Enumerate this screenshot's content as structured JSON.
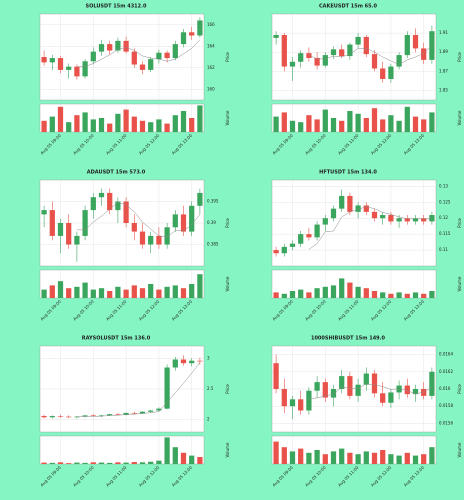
{
  "chart_data": [
    {
      "type": "candlestick",
      "title": "SOLUSDT 15m 4312.0",
      "ylabel": "Price",
      "vlabel": "Volume",
      "ylim": [
        159,
        167
      ],
      "yticks": [
        160,
        162,
        164,
        166
      ],
      "vlim": [
        0,
        100
      ],
      "xticks": [
        {
          "value": 2,
          "label": "Aug 05 09:00"
        },
        {
          "value": 6,
          "label": "Aug 05 10:00"
        },
        {
          "value": 10,
          "label": "Aug 05 11:00"
        },
        {
          "value": 14,
          "label": "Aug 05 12:00"
        },
        {
          "value": 18,
          "label": "Aug 05 13:00"
        }
      ],
      "up_color": "#3aa55d",
      "down_color": "#e8524a",
      "ma_color": "#8a8a8a",
      "grid": true,
      "ohlc": [
        [
          163.0,
          163.6,
          162.2,
          162.5
        ],
        [
          162.5,
          163.2,
          161.8,
          162.9
        ],
        [
          162.9,
          163.1,
          161.5,
          161.8
        ],
        [
          161.8,
          162.4,
          161.0,
          162.1
        ],
        [
          162.1,
          162.3,
          160.9,
          161.2
        ],
        [
          161.2,
          162.8,
          161.0,
          162.6
        ],
        [
          162.6,
          163.9,
          162.3,
          163.5
        ],
        [
          163.5,
          164.6,
          163.1,
          164.2
        ],
        [
          164.2,
          164.5,
          163.2,
          163.6
        ],
        [
          163.6,
          164.8,
          163.4,
          164.5
        ],
        [
          164.5,
          164.9,
          163.3,
          163.5
        ],
        [
          163.5,
          163.8,
          162.0,
          162.3
        ],
        [
          162.3,
          162.6,
          161.4,
          161.8
        ],
        [
          161.8,
          163.0,
          161.6,
          162.8
        ],
        [
          162.8,
          163.7,
          162.4,
          163.4
        ],
        [
          163.4,
          163.6,
          162.5,
          162.9
        ],
        [
          162.9,
          164.5,
          162.7,
          164.2
        ],
        [
          164.2,
          165.6,
          163.9,
          165.3
        ],
        [
          165.3,
          165.8,
          164.6,
          165.0
        ],
        [
          165.0,
          166.7,
          164.8,
          166.4
        ]
      ],
      "volume": [
        40,
        55,
        90,
        35,
        60,
        70,
        45,
        50,
        30,
        65,
        80,
        55,
        40,
        35,
        45,
        30,
        60,
        75,
        50,
        95
      ],
      "ma": [
        null,
        null,
        null,
        null,
        162.1,
        162.1,
        162.4,
        162.8,
        163.2,
        163.7,
        163.9,
        163.6,
        163.1,
        162.9,
        162.8,
        162.6,
        162.8,
        163.3,
        163.8,
        164.6
      ]
    },
    {
      "type": "candlestick",
      "title": "CAKEUSDT 15m 65.0",
      "ylabel": "Price",
      "vlabel": "Volume",
      "ylim": [
        1.84,
        1.93
      ],
      "yticks": [
        1.85,
        1.87,
        1.89,
        1.91
      ],
      "vlim": [
        0,
        100
      ],
      "xticks": [
        {
          "value": 2,
          "label": "Aug 05 09:00"
        },
        {
          "value": 6,
          "label": "Aug 05 10:00"
        },
        {
          "value": 10,
          "label": "Aug 05 11:00"
        },
        {
          "value": 14,
          "label": "Aug 05 12:00"
        },
        {
          "value": 18,
          "label": "Aug 05 13:00"
        }
      ],
      "up_color": "#3aa55d",
      "down_color": "#e8524a",
      "ma_color": "#8a8a8a",
      "grid": true,
      "ohlc": [
        [
          1.905,
          1.912,
          1.898,
          1.908
        ],
        [
          1.908,
          1.91,
          1.87,
          1.875
        ],
        [
          1.875,
          1.885,
          1.86,
          1.88
        ],
        [
          1.88,
          1.892,
          1.874,
          1.889
        ],
        [
          1.889,
          1.895,
          1.88,
          1.884
        ],
        [
          1.884,
          1.89,
          1.872,
          1.876
        ],
        [
          1.876,
          1.89,
          1.874,
          1.887
        ],
        [
          1.887,
          1.896,
          1.883,
          1.893
        ],
        [
          1.893,
          1.898,
          1.884,
          1.886
        ],
        [
          1.886,
          1.9,
          1.882,
          1.898
        ],
        [
          1.898,
          1.91,
          1.894,
          1.906
        ],
        [
          1.906,
          1.908,
          1.885,
          1.888
        ],
        [
          1.888,
          1.892,
          1.87,
          1.873
        ],
        [
          1.873,
          1.88,
          1.858,
          1.862
        ],
        [
          1.862,
          1.878,
          1.858,
          1.875
        ],
        [
          1.875,
          1.89,
          1.872,
          1.887
        ],
        [
          1.887,
          1.912,
          1.884,
          1.908
        ],
        [
          1.908,
          1.915,
          1.89,
          1.894
        ],
        [
          1.894,
          1.9,
          1.878,
          1.882
        ],
        [
          1.882,
          1.918,
          1.878,
          1.912
        ]
      ],
      "volume": [
        55,
        70,
        40,
        35,
        60,
        45,
        80,
        50,
        40,
        75,
        65,
        50,
        85,
        45,
        60,
        40,
        90,
        55,
        45,
        70
      ],
      "ma": [
        null,
        null,
        null,
        null,
        1.887,
        1.883,
        1.883,
        1.886,
        1.885,
        1.888,
        1.894,
        1.894,
        1.89,
        1.885,
        1.881,
        1.877,
        1.882,
        1.885,
        1.889,
        1.897
      ]
    },
    {
      "type": "candlestick",
      "title": "ADAUSDT 15m 573.0",
      "ylabel": "Price",
      "vlabel": "Volume",
      "ylim": [
        0.38,
        0.4
      ],
      "yticks": [
        0.385,
        0.39,
        0.395
      ],
      "vlim": [
        0,
        100
      ],
      "xticks": [
        {
          "value": 2,
          "label": "Aug 05 09:00"
        },
        {
          "value": 6,
          "label": "Aug 05 10:00"
        },
        {
          "value": 10,
          "label": "Aug 05 11:00"
        },
        {
          "value": 14,
          "label": "Aug 05 12:00"
        },
        {
          "value": 18,
          "label": "Aug 05 13:00"
        }
      ],
      "up_color": "#3aa55d",
      "down_color": "#e8524a",
      "ma_color": "#8a8a8a",
      "grid": true,
      "ohlc": [
        [
          0.392,
          0.394,
          0.389,
          0.393
        ],
        [
          0.393,
          0.395,
          0.386,
          0.387
        ],
        [
          0.387,
          0.391,
          0.383,
          0.39
        ],
        [
          0.39,
          0.392,
          0.384,
          0.385
        ],
        [
          0.385,
          0.388,
          0.381,
          0.387
        ],
        [
          0.387,
          0.394,
          0.386,
          0.393
        ],
        [
          0.393,
          0.397,
          0.391,
          0.396
        ],
        [
          0.396,
          0.398,
          0.394,
          0.397
        ],
        [
          0.397,
          0.398,
          0.392,
          0.393
        ],
        [
          0.393,
          0.396,
          0.39,
          0.395
        ],
        [
          0.395,
          0.396,
          0.389,
          0.39
        ],
        [
          0.39,
          0.392,
          0.386,
          0.388
        ],
        [
          0.388,
          0.39,
          0.384,
          0.385
        ],
        [
          0.385,
          0.388,
          0.383,
          0.387
        ],
        [
          0.387,
          0.389,
          0.384,
          0.385
        ],
        [
          0.385,
          0.39,
          0.384,
          0.389
        ],
        [
          0.389,
          0.393,
          0.388,
          0.392
        ],
        [
          0.392,
          0.394,
          0.387,
          0.388
        ],
        [
          0.388,
          0.395,
          0.387,
          0.394
        ],
        [
          0.394,
          0.398,
          0.392,
          0.397
        ]
      ],
      "volume": [
        30,
        45,
        60,
        35,
        40,
        55,
        30,
        35,
        25,
        40,
        30,
        45,
        35,
        50,
        30,
        40,
        45,
        35,
        50,
        85
      ],
      "ma": [
        null,
        null,
        null,
        null,
        0.3884,
        0.3884,
        0.3902,
        0.3916,
        0.3932,
        0.3948,
        0.3942,
        0.3926,
        0.3902,
        0.3886,
        0.387,
        0.3868,
        0.3882,
        0.3882,
        0.3896,
        0.392
      ]
    },
    {
      "type": "candlestick",
      "title": "HFTUSDT 15m 134.0",
      "ylabel": "Price",
      "vlabel": "Volume",
      "ylim": [
        0.105,
        0.132
      ],
      "yticks": [
        0.11,
        0.115,
        0.12,
        0.125,
        0.13
      ],
      "vlim": [
        0,
        100
      ],
      "xticks": [
        {
          "value": 2,
          "label": "Aug 05 09:00"
        },
        {
          "value": 6,
          "label": "Aug 05 10:00"
        },
        {
          "value": 10,
          "label": "Aug 05 11:00"
        },
        {
          "value": 14,
          "label": "Aug 05 12:00"
        },
        {
          "value": 18,
          "label": "Aug 05 13:00"
        }
      ],
      "up_color": "#3aa55d",
      "down_color": "#e8524a",
      "ma_color": "#8a8a8a",
      "grid": true,
      "ohlc": [
        [
          0.11,
          0.111,
          0.108,
          0.109
        ],
        [
          0.109,
          0.112,
          0.108,
          0.111
        ],
        [
          0.111,
          0.113,
          0.11,
          0.112
        ],
        [
          0.112,
          0.116,
          0.111,
          0.115
        ],
        [
          0.115,
          0.117,
          0.113,
          0.114
        ],
        [
          0.114,
          0.119,
          0.113,
          0.118
        ],
        [
          0.118,
          0.121,
          0.116,
          0.12
        ],
        [
          0.12,
          0.124,
          0.119,
          0.123
        ],
        [
          0.123,
          0.129,
          0.122,
          0.127
        ],
        [
          0.127,
          0.128,
          0.121,
          0.122
        ],
        [
          0.122,
          0.125,
          0.12,
          0.124
        ],
        [
          0.124,
          0.125,
          0.121,
          0.122
        ],
        [
          0.122,
          0.123,
          0.119,
          0.12
        ],
        [
          0.12,
          0.122,
          0.118,
          0.121
        ],
        [
          0.121,
          0.122,
          0.118,
          0.119
        ],
        [
          0.119,
          0.121,
          0.117,
          0.12
        ],
        [
          0.12,
          0.121,
          0.118,
          0.119
        ],
        [
          0.119,
          0.121,
          0.118,
          0.12
        ],
        [
          0.12,
          0.121,
          0.118,
          0.119
        ],
        [
          0.119,
          0.122,
          0.118,
          0.121
        ]
      ],
      "volume": [
        20,
        15,
        25,
        30,
        20,
        35,
        40,
        45,
        70,
        55,
        40,
        35,
        25,
        20,
        15,
        20,
        15,
        20,
        15,
        25
      ],
      "ma": [
        null,
        null,
        null,
        null,
        0.1102,
        0.112,
        0.1158,
        0.116,
        0.1204,
        0.122,
        0.1228,
        0.1236,
        0.123,
        0.1218,
        0.1212,
        0.1204,
        0.1198,
        0.1198,
        0.1198,
        0.1198
      ]
    },
    {
      "type": "candlestick",
      "title": "RAYSOLUSDT 15m 136.0",
      "ylabel": "Price",
      "vlabel": "Volume",
      "ylim": [
        1.8,
        3.2
      ],
      "yticks": [
        2,
        2.5,
        3
      ],
      "vlim": [
        0,
        100
      ],
      "xticks": [
        {
          "value": 2,
          "label": "Aug 05 09:00"
        },
        {
          "value": 6,
          "label": "Aug 05 10:00"
        },
        {
          "value": 10,
          "label": "Aug 05 11:00"
        },
        {
          "value": 14,
          "label": "Aug 05 12:00"
        },
        {
          "value": 18,
          "label": "Aug 05 13:00"
        }
      ],
      "up_color": "#3aa55d",
      "down_color": "#e8524a",
      "ma_color": "#8a8a8a",
      "grid": true,
      "ohlc": [
        [
          2.06,
          2.08,
          2.02,
          2.04
        ],
        [
          2.04,
          2.07,
          2.02,
          2.06
        ],
        [
          2.06,
          2.08,
          2.03,
          2.05
        ],
        [
          2.05,
          2.07,
          2.03,
          2.04
        ],
        [
          2.04,
          2.06,
          2.02,
          2.05
        ],
        [
          2.05,
          2.08,
          2.04,
          2.07
        ],
        [
          2.07,
          2.09,
          2.05,
          2.06
        ],
        [
          2.06,
          2.08,
          2.04,
          2.07
        ],
        [
          2.07,
          2.1,
          2.06,
          2.09
        ],
        [
          2.09,
          2.11,
          2.07,
          2.08
        ],
        [
          2.08,
          2.12,
          2.07,
          2.11
        ],
        [
          2.11,
          2.13,
          2.09,
          2.1
        ],
        [
          2.1,
          2.14,
          2.09,
          2.13
        ],
        [
          2.13,
          2.16,
          2.11,
          2.15
        ],
        [
          2.15,
          2.2,
          2.13,
          2.18
        ],
        [
          2.18,
          2.9,
          2.17,
          2.85
        ],
        [
          2.85,
          3.02,
          2.8,
          2.98
        ],
        [
          2.98,
          3.05,
          2.88,
          2.92
        ],
        [
          2.92,
          3.0,
          2.87,
          2.96
        ],
        [
          2.96,
          3.01,
          2.9,
          2.95
        ]
      ],
      "volume": [
        5,
        4,
        6,
        3,
        5,
        4,
        6,
        5,
        4,
        6,
        5,
        7,
        6,
        8,
        12,
        95,
        60,
        40,
        30,
        25
      ],
      "ma": [
        null,
        null,
        null,
        null,
        2.048,
        2.054,
        2.054,
        2.058,
        2.068,
        2.074,
        2.082,
        2.09,
        2.102,
        2.114,
        2.134,
        2.282,
        2.438,
        2.596,
        2.758,
        2.932
      ]
    },
    {
      "type": "candlestick",
      "title": "1000SHIBUSDT 15m 149.0",
      "ylabel": "Price",
      "vlabel": "Volume",
      "ylim": [
        0.0155,
        0.0165
      ],
      "yticks": [
        0.0156,
        0.0158,
        0.016,
        0.0162,
        0.0164
      ],
      "vlim": [
        0,
        100
      ],
      "xticks": [
        {
          "value": 2,
          "label": "Aug 05 09:00"
        },
        {
          "value": 6,
          "label": "Aug 05 10:00"
        },
        {
          "value": 10,
          "label": "Aug 05 11:00"
        },
        {
          "value": 14,
          "label": "Aug 05 12:00"
        },
        {
          "value": 18,
          "label": "Aug 05 13:00"
        }
      ],
      "up_color": "#3aa55d",
      "down_color": "#e8524a",
      "ma_color": "#8a8a8a",
      "grid": true,
      "ohlc": [
        [
          0.0163,
          0.0164,
          0.01595,
          0.016
        ],
        [
          0.016,
          0.01612,
          0.01572,
          0.0158
        ],
        [
          0.0158,
          0.01592,
          0.01565,
          0.01588
        ],
        [
          0.01588,
          0.01598,
          0.0157,
          0.01575
        ],
        [
          0.01575,
          0.01602,
          0.0157,
          0.01598
        ],
        [
          0.01598,
          0.01615,
          0.0159,
          0.01608
        ],
        [
          0.01608,
          0.01612,
          0.01585,
          0.0159
        ],
        [
          0.0159,
          0.01605,
          0.0158,
          0.016
        ],
        [
          0.016,
          0.01622,
          0.01595,
          0.01615
        ],
        [
          0.01615,
          0.0162,
          0.01588,
          0.01592
        ],
        [
          0.01592,
          0.01612,
          0.01585,
          0.01605
        ],
        [
          0.01605,
          0.01625,
          0.01598,
          0.01618
        ],
        [
          0.01618,
          0.01622,
          0.0159,
          0.01595
        ],
        [
          0.01595,
          0.01608,
          0.0158,
          0.01584
        ],
        [
          0.01584,
          0.016,
          0.01578,
          0.01596
        ],
        [
          0.01596,
          0.0161,
          0.01588,
          0.01604
        ],
        [
          0.01604,
          0.01612,
          0.0159,
          0.01594
        ],
        [
          0.01594,
          0.01605,
          0.01585,
          0.016
        ],
        [
          0.016,
          0.01608,
          0.01588,
          0.01592
        ],
        [
          0.01592,
          0.01625,
          0.01588,
          0.0162
        ]
      ],
      "volume": [
        80,
        60,
        45,
        55,
        40,
        50,
        35,
        45,
        55,
        40,
        35,
        45,
        40,
        50,
        35,
        30,
        40,
        30,
        35,
        60
      ],
      "ma": [
        null,
        null,
        null,
        null,
        0.015882,
        0.015898,
        0.015918,
        0.015942,
        0.016022,
        0.01601,
        0.016004,
        0.01606,
        0.01605,
        0.016028,
        0.015996,
        0.016002,
        0.015982,
        0.015942,
        0.015966,
        0.016018
      ]
    }
  ]
}
